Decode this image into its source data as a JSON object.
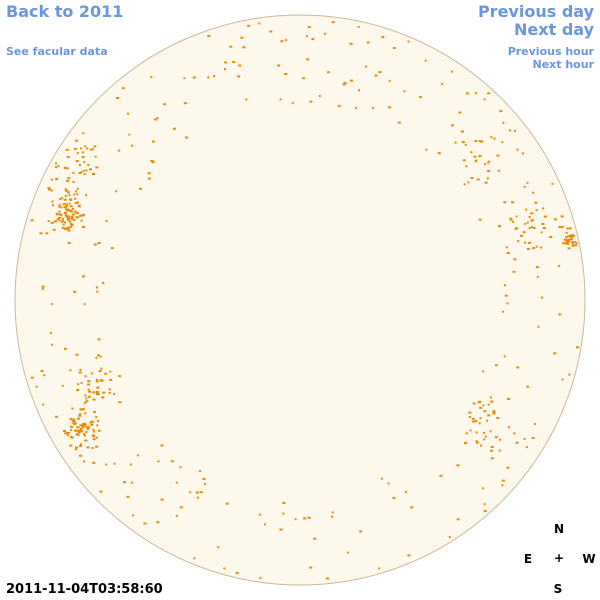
{
  "links": {
    "back": "Back to 2011",
    "facular": "See facular data",
    "previous_day": "Previous day",
    "next_day": "Next day",
    "previous_hour": "Previous hour",
    "next_hour": "Next hour"
  },
  "timestamp": "2011-11-04T03:58:60",
  "compass": {
    "north": "N",
    "east": "E",
    "center": "+",
    "west": "W",
    "south": "S"
  }
}
